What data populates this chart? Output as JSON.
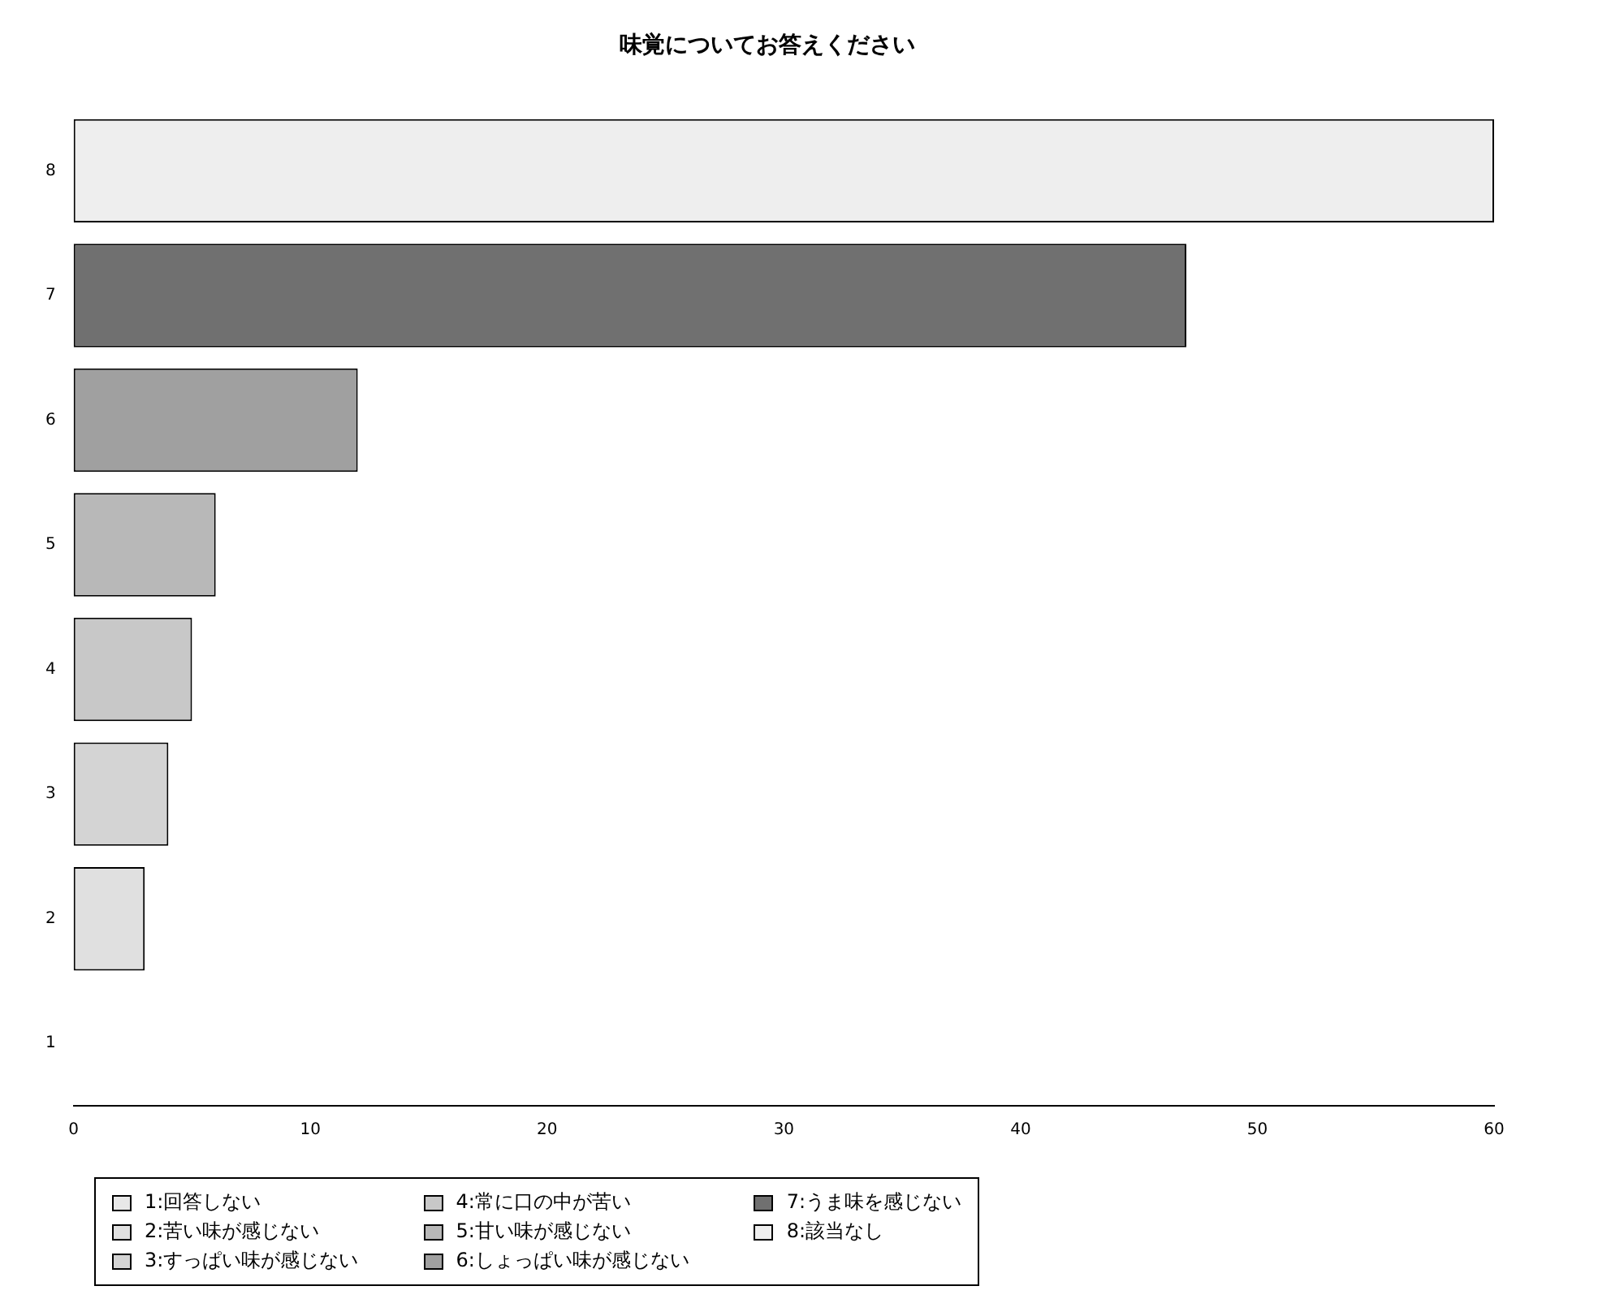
{
  "chart_data": {
    "type": "bar",
    "orientation": "horizontal",
    "title": "味覚についてお答えください",
    "categories": [
      "8",
      "7",
      "6",
      "5",
      "4",
      "3",
      "2",
      "1"
    ],
    "series": [
      {
        "name": "1:回答しない",
        "color": "#e8e8e8",
        "values": [
          null,
          null,
          null,
          null,
          null,
          null,
          null,
          0
        ]
      },
      {
        "name": "2:苦い味が感じない",
        "color": "#e0e0e0",
        "values": [
          null,
          null,
          null,
          null,
          null,
          null,
          3,
          null
        ]
      },
      {
        "name": "3:すっぱい味が感じない",
        "color": "#d4d4d4",
        "values": [
          null,
          null,
          null,
          null,
          null,
          4,
          null,
          null
        ]
      },
      {
        "name": "4:常に口の中が苦い",
        "color": "#c8c8c8",
        "values": [
          null,
          null,
          null,
          null,
          5,
          null,
          null,
          null
        ]
      },
      {
        "name": "5:甘い味が感じない",
        "color": "#b8b8b8",
        "values": [
          null,
          null,
          null,
          6,
          null,
          null,
          null,
          null
        ]
      },
      {
        "name": "6:しょっぱい味が感じない",
        "color": "#a0a0a0",
        "values": [
          null,
          null,
          12,
          null,
          null,
          null,
          null,
          null
        ]
      },
      {
        "name": "7:うま味を感じない",
        "color": "#707070",
        "values": [
          null,
          47,
          null,
          null,
          null,
          null,
          null,
          null
        ]
      },
      {
        "name": "8:該当なし",
        "color": "#eeeeee",
        "values": [
          60,
          null,
          null,
          null,
          null,
          null,
          null,
          null
        ]
      }
    ],
    "xlim": [
      0,
      60
    ],
    "xticks": [
      0,
      10,
      20,
      30,
      40,
      50,
      60
    ],
    "legend": "bottom left",
    "grid": false
  }
}
